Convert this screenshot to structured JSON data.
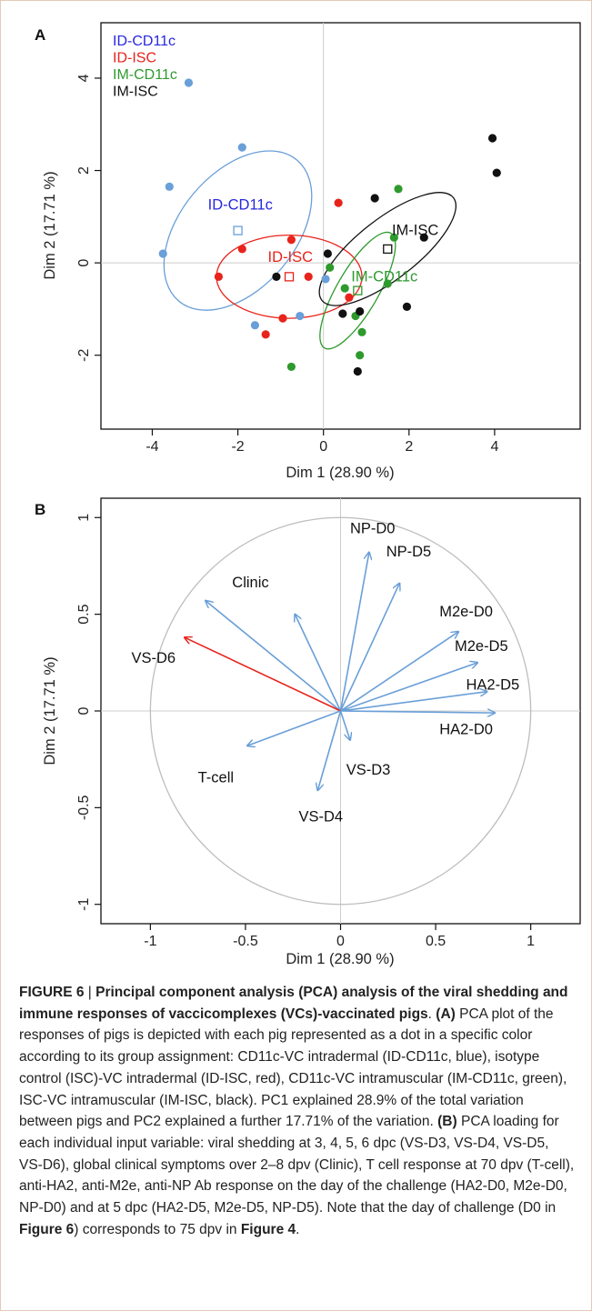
{
  "colors": {
    "id_cd11c": "#6a9fd8",
    "id_cd11c_label": "#2727e0",
    "id_isc": "#e8231b",
    "im_cd11c": "#2e9a2e",
    "im_isc": "#111111",
    "arrow": "#6a9fd8",
    "arrow_highlight": "#e8231b",
    "circle": "#bdbdbd",
    "frame": "#e4c9b8"
  },
  "chart_data": [
    {
      "type": "scatter",
      "panel": "A",
      "xlabel": "Dim 1 (28.90 %)",
      "ylabel": "Dim 2 (17.71 %)",
      "xlim": [
        -5.2,
        6.0
      ],
      "ylim": [
        -3.6,
        5.2
      ],
      "xticks": [
        -4,
        -2,
        0,
        2,
        4
      ],
      "yticks": [
        -2,
        0,
        2,
        4
      ],
      "legend": [
        "ID-CD11c",
        "ID-ISC",
        "IM-CD11c",
        "IM-ISC"
      ],
      "series": [
        {
          "name": "ID-CD11c",
          "color_key": "id_cd11c",
          "label_color_key": "id_cd11c_label",
          "points": [
            [
              -3.15,
              3.9
            ],
            [
              -1.9,
              2.5
            ],
            [
              -3.6,
              1.65
            ],
            [
              -3.75,
              0.2
            ],
            [
              -1.6,
              -1.35
            ],
            [
              -0.55,
              -1.15
            ],
            [
              0.05,
              -0.35
            ]
          ],
          "centroid": [
            -2.0,
            0.7
          ],
          "ellipse": {
            "cx": -2.0,
            "cy": 0.7,
            "rx": 2.15,
            "ry": 1.25,
            "rot": -50
          },
          "label": "ID-CD11c",
          "label_pos": [
            -2.7,
            1.15
          ]
        },
        {
          "name": "ID-ISC",
          "color_key": "id_isc",
          "label_color_key": "id_isc",
          "points": [
            [
              -1.9,
              0.3
            ],
            [
              -2.45,
              -0.3
            ],
            [
              -0.75,
              0.5
            ],
            [
              -0.35,
              -0.3
            ],
            [
              -1.35,
              -1.55
            ],
            [
              -0.95,
              -1.2
            ],
            [
              0.35,
              1.3
            ],
            [
              0.6,
              -0.75
            ]
          ],
          "centroid": [
            -0.8,
            -0.3
          ],
          "ellipse": {
            "cx": -0.8,
            "cy": -0.3,
            "rx": 1.7,
            "ry": 0.9,
            "rot": 0
          },
          "label": "ID-ISC",
          "label_pos": [
            -1.3,
            0.02
          ]
        },
        {
          "name": "IM-CD11c",
          "color_key": "im_cd11c",
          "label_color_key": "im_cd11c",
          "points": [
            [
              1.75,
              1.6
            ],
            [
              1.65,
              0.55
            ],
            [
              0.15,
              -0.1
            ],
            [
              0.5,
              -0.55
            ],
            [
              0.75,
              -1.15
            ],
            [
              1.5,
              -0.45
            ],
            [
              0.9,
              -1.5
            ],
            [
              0.85,
              -2.0
            ],
            [
              -0.75,
              -2.25
            ]
          ],
          "centroid": [
            0.8,
            -0.6
          ],
          "ellipse": {
            "cx": 0.8,
            "cy": -0.6,
            "rx": 1.55,
            "ry": 0.45,
            "rot": -60
          },
          "label": "IM-CD11c",
          "label_pos": [
            0.65,
            -0.4
          ]
        },
        {
          "name": "IM-ISC",
          "color_key": "im_isc",
          "label_color_key": "im_isc",
          "points": [
            [
              -1.1,
              -0.3
            ],
            [
              0.1,
              0.2
            ],
            [
              1.2,
              1.4
            ],
            [
              2.35,
              0.55
            ],
            [
              0.45,
              -1.1
            ],
            [
              0.85,
              -1.05
            ],
            [
              1.95,
              -0.95
            ],
            [
              0.8,
              -2.35
            ],
            [
              3.95,
              2.7
            ],
            [
              4.05,
              1.95
            ]
          ],
          "centroid": [
            1.5,
            0.3
          ],
          "ellipse": {
            "cx": 1.5,
            "cy": 0.3,
            "rx": 1.95,
            "ry": 0.65,
            "rot": -38
          },
          "label": "IM-ISC",
          "label_pos": [
            1.6,
            0.6
          ]
        }
      ]
    },
    {
      "type": "line",
      "panel": "B",
      "xlabel": "Dim 1 (28.90 %)",
      "ylabel": "Dim 2 (17.71 %)",
      "xlim": [
        -1.26,
        1.26
      ],
      "ylim": [
        -1.1,
        1.1
      ],
      "xticks": [
        -1,
        -0.5,
        0,
        0.5,
        1
      ],
      "yticks": [
        -1,
        -0.5,
        0,
        0.5,
        1
      ],
      "vectors": [
        {
          "name": "NP-D0",
          "x": 0.15,
          "y": 0.82,
          "label_pos": [
            0.05,
            0.92
          ],
          "anchor": "start"
        },
        {
          "name": "NP-D5",
          "x": 0.31,
          "y": 0.66,
          "label_pos": [
            0.24,
            0.8
          ],
          "anchor": "start"
        },
        {
          "name": "M2e-D0",
          "x": 0.62,
          "y": 0.41,
          "label_pos": [
            0.52,
            0.49
          ],
          "anchor": "start"
        },
        {
          "name": "M2e-D5",
          "x": 0.72,
          "y": 0.25,
          "label_pos": [
            0.6,
            0.31
          ],
          "anchor": "start"
        },
        {
          "name": "HA2-D5",
          "x": 0.77,
          "y": 0.1,
          "label_pos": [
            0.66,
            0.11
          ],
          "anchor": "start"
        },
        {
          "name": "HA2-D0",
          "x": 0.81,
          "y": -0.01,
          "label_pos": [
            0.52,
            -0.12
          ],
          "anchor": "start"
        },
        {
          "name": "Clinic",
          "x": -0.71,
          "y": 0.57,
          "label_pos": [
            -0.57,
            0.64
          ],
          "anchor": "start"
        },
        {
          "name": "",
          "x": -0.24,
          "y": 0.5,
          "label_pos": [
            0,
            0
          ],
          "anchor": "start"
        },
        {
          "name": "VS-D6",
          "x": -0.82,
          "y": 0.38,
          "label_pos": [
            -1.1,
            0.25
          ],
          "anchor": "start",
          "highlight": true
        },
        {
          "name": "VS-D3",
          "x": 0.05,
          "y": -0.15,
          "label_pos": [
            0.03,
            -0.33
          ],
          "anchor": "start"
        },
        {
          "name": "VS-D4",
          "x": -0.12,
          "y": -0.41,
          "label_pos": [
            -0.22,
            -0.57
          ],
          "anchor": "start"
        },
        {
          "name": "T-cell",
          "x": -0.49,
          "y": -0.18,
          "label_pos": [
            -0.75,
            -0.37
          ],
          "anchor": "start"
        }
      ]
    }
  ],
  "caption": {
    "figure_label": "FIGURE 6",
    "separator": " | ",
    "title": "Principal component analysis (PCA) analysis of the viral shedding and immune responses of vaccicomplexes (VCs)-vaccinated pigs",
    "title_end": ". ",
    "part_a_label": "(A)",
    "part_a_text": " PCA plot of the responses of pigs is depicted with each pig represented as a dot in a specific color according to its group assignment: CD11c-VC intradermal (ID-CD11c, blue), isotype control (ISC)-VC intradermal (ID-ISC, red), CD11c-VC intramuscular (IM-CD11c, green), ISC-VC intramuscular (IM-ISC, black). PC1 explained 28.9% of the total variation between pigs and PC2 explained a further 17.71% of the variation. ",
    "part_b_label": "(B)",
    "part_b_text": " PCA loading for each individual input variable: viral shedding at 3, 4, 5, 6 dpc (VS-D3, VS-D4, VS-D5, VS-D6), global clinical symptoms over 2–8 dpv (Clinic), T cell response at 70 dpv (T-cell), anti-HA2, anti-M2e, anti-NP Ab response on the day of the challenge (HA2-D0, M2e-D0, NP-D0) and at 5 dpc (HA2-D5, M2e-D5, NP-D5). Note that the day of challenge (D0 in ",
    "ref1": "Figure 6",
    "mid_text": ") corresponds to 75 dpv in ",
    "ref2": "Figure 4",
    "end_text": "."
  }
}
